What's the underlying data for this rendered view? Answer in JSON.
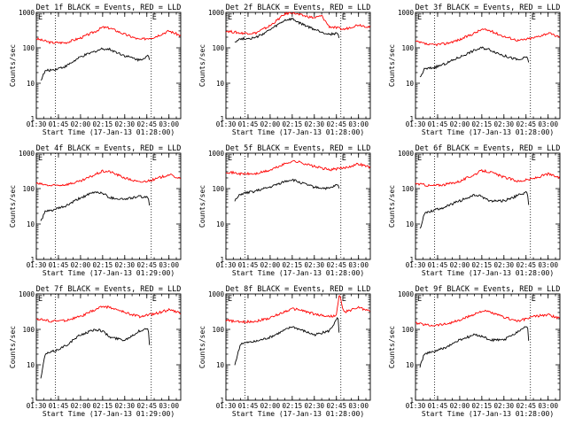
{
  "chart_data": [
    {
      "type": "line",
      "title": "Det 1f BLACK = Events, RED = LLD",
      "xlabel": "Start Time (17-Jan-13 01:28:00)",
      "ylabel": "Counts/sec",
      "y_scale": "log",
      "ylim": [
        1,
        1000
      ],
      "xlim": [
        "01:30",
        "03:08"
      ],
      "x_ticks": [
        "01:30",
        "01:45",
        "02:00",
        "02:15",
        "02:30",
        "02:45",
        "03:00"
      ],
      "y_ticks": [
        "1",
        "10",
        "100",
        "1000"
      ],
      "event_lines": [
        "01:43",
        "02:48"
      ],
      "event_marks": [
        "E",
        "E"
      ],
      "series": [
        {
          "color": "#ff0000",
          "x": [
            "01:30",
            "01:40",
            "01:50",
            "02:00",
            "02:10",
            "02:15",
            "02:20",
            "02:30",
            "02:40",
            "02:50",
            "03:00",
            "03:08"
          ],
          "values": [
            180,
            140,
            140,
            190,
            290,
            380,
            360,
            240,
            170,
            200,
            300,
            220
          ]
        },
        {
          "color": "#000000",
          "x": [
            "01:33",
            "01:36",
            "01:43",
            "01:50",
            "02:00",
            "02:10",
            "02:15",
            "02:20",
            "02:30",
            "02:40",
            "02:46",
            "02:47"
          ],
          "values": [
            12,
            22,
            25,
            30,
            55,
            80,
            95,
            90,
            60,
            45,
            60,
            40
          ]
        }
      ]
    },
    {
      "type": "line",
      "title": "Det 2f BLACK = Events, RED = LLD",
      "xlabel": "Start Time (17-Jan-13 01:28:00)",
      "ylabel": "Counts/sec",
      "y_scale": "log",
      "ylim": [
        1,
        1000
      ],
      "xlim": [
        "01:30",
        "03:08"
      ],
      "x_ticks": [
        "01:30",
        "01:45",
        "02:00",
        "02:15",
        "02:30",
        "02:45",
        "03:00"
      ],
      "y_ticks": [
        "1",
        "10",
        "100",
        "1000"
      ],
      "event_lines": [
        "01:43",
        "02:48"
      ],
      "event_marks": [
        "E",
        "E"
      ],
      "series": [
        {
          "color": "#ff0000",
          "x": [
            "01:30",
            "01:40",
            "01:50",
            "02:00",
            "02:10",
            "02:15",
            "02:20",
            "02:30",
            "02:35",
            "02:40",
            "02:50",
            "03:00",
            "03:08"
          ],
          "values": [
            300,
            260,
            260,
            420,
            900,
            1000,
            850,
            700,
            800,
            400,
            330,
            450,
            380
          ]
        },
        {
          "color": "#000000",
          "x": [
            "01:36",
            "01:40",
            "01:50",
            "02:00",
            "02:10",
            "02:15",
            "02:20",
            "02:30",
            "02:40",
            "02:46",
            "02:47"
          ],
          "values": [
            150,
            180,
            190,
            320,
            600,
            650,
            500,
            330,
            240,
            260,
            160
          ]
        }
      ]
    },
    {
      "type": "line",
      "title": "Det 3f BLACK = Events, RED = LLD",
      "xlabel": "Start Time (17-Jan-13 01:28:00)",
      "ylabel": "Counts/sec",
      "y_scale": "log",
      "ylim": [
        1,
        1000
      ],
      "xlim": [
        "01:30",
        "03:08"
      ],
      "x_ticks": [
        "01:30",
        "01:45",
        "02:00",
        "02:15",
        "02:30",
        "02:45",
        "03:00"
      ],
      "y_ticks": [
        "1",
        "10",
        "100",
        "1000"
      ],
      "event_lines": [
        "01:43",
        "02:48"
      ],
      "event_marks": [
        "E",
        "E"
      ],
      "series": [
        {
          "color": "#ff0000",
          "x": [
            "01:30",
            "01:40",
            "01:50",
            "02:00",
            "02:10",
            "02:15",
            "02:20",
            "02:30",
            "02:40",
            "02:50",
            "03:00",
            "03:08"
          ],
          "values": [
            150,
            120,
            130,
            170,
            260,
            330,
            310,
            210,
            160,
            190,
            260,
            200
          ]
        },
        {
          "color": "#000000",
          "x": [
            "01:33",
            "01:36",
            "01:43",
            "01:50",
            "02:00",
            "02:10",
            "02:15",
            "02:20",
            "02:30",
            "02:40",
            "02:46",
            "02:47"
          ],
          "values": [
            14,
            25,
            28,
            35,
            55,
            85,
            100,
            90,
            60,
            45,
            55,
            35
          ]
        }
      ]
    },
    {
      "type": "line",
      "title": "Det 4f BLACK = Events, RED = LLD",
      "xlabel": "Start Time (17-Jan-13 01:29:00)",
      "ylabel": "Counts/sec",
      "y_scale": "log",
      "ylim": [
        1,
        1000
      ],
      "xlim": [
        "01:30",
        "03:08"
      ],
      "x_ticks": [
        "01:30",
        "01:45",
        "02:00",
        "02:15",
        "02:30",
        "02:45",
        "03:00"
      ],
      "y_ticks": [
        "1",
        "10",
        "100",
        "1000"
      ],
      "event_lines": [
        "01:43",
        "02:48"
      ],
      "event_marks": [
        "E",
        "E"
      ],
      "series": [
        {
          "color": "#ff0000",
          "x": [
            "01:30",
            "01:40",
            "01:50",
            "02:00",
            "02:10",
            "02:15",
            "02:20",
            "02:30",
            "02:40",
            "02:50",
            "03:00",
            "03:08"
          ],
          "values": [
            140,
            120,
            130,
            160,
            250,
            310,
            300,
            200,
            150,
            180,
            250,
            190
          ]
        },
        {
          "color": "#000000",
          "x": [
            "01:33",
            "01:36",
            "01:43",
            "01:50",
            "02:00",
            "02:10",
            "02:15",
            "02:20",
            "02:30",
            "02:40",
            "02:46",
            "02:47"
          ],
          "values": [
            12,
            22,
            26,
            32,
            55,
            80,
            75,
            55,
            50,
            60,
            55,
            30
          ]
        }
      ]
    },
    {
      "type": "line",
      "title": "Det 5f BLACK = Events, RED = LLD",
      "xlabel": "Start Time (17-Jan-13 01:28:00)",
      "ylabel": "Counts/sec",
      "y_scale": "log",
      "ylim": [
        1,
        1000
      ],
      "xlim": [
        "01:30",
        "03:08"
      ],
      "x_ticks": [
        "01:30",
        "01:45",
        "02:00",
        "02:15",
        "02:30",
        "02:45",
        "03:00"
      ],
      "y_ticks": [
        "1",
        "10",
        "100",
        "1000"
      ],
      "event_lines": [
        "01:43",
        "02:48"
      ],
      "event_marks": [
        "E",
        "E"
      ],
      "series": [
        {
          "color": "#ff0000",
          "x": [
            "01:30",
            "01:40",
            "01:50",
            "02:00",
            "02:10",
            "02:15",
            "02:20",
            "02:30",
            "02:40",
            "02:50",
            "03:00",
            "03:08"
          ],
          "values": [
            300,
            260,
            260,
            330,
            500,
            600,
            560,
            420,
            340,
            380,
            500,
            400
          ]
        },
        {
          "color": "#000000",
          "x": [
            "01:36",
            "01:40",
            "01:50",
            "02:00",
            "02:10",
            "02:15",
            "02:20",
            "02:30",
            "02:40",
            "02:46",
            "02:47"
          ],
          "values": [
            45,
            70,
            85,
            110,
            160,
            180,
            150,
            110,
            100,
            130,
            90
          ]
        }
      ]
    },
    {
      "type": "line",
      "title": "Det 6f BLACK = Events, RED = LLD",
      "xlabel": "Start Time (17-Jan-13 01:28:00)",
      "ylabel": "Counts/sec",
      "y_scale": "log",
      "ylim": [
        1,
        1000
      ],
      "xlim": [
        "01:30",
        "03:08"
      ],
      "x_ticks": [
        "01:30",
        "01:45",
        "02:00",
        "02:15",
        "02:30",
        "02:45",
        "03:00"
      ],
      "y_ticks": [
        "1",
        "10",
        "100",
        "1000"
      ],
      "event_lines": [
        "01:43",
        "02:48"
      ],
      "event_marks": [
        "E",
        "E"
      ],
      "series": [
        {
          "color": "#ff0000",
          "x": [
            "01:30",
            "01:40",
            "01:50",
            "02:00",
            "02:10",
            "02:15",
            "02:20",
            "02:30",
            "02:40",
            "02:50",
            "03:00",
            "03:08"
          ],
          "values": [
            140,
            120,
            130,
            160,
            250,
            320,
            300,
            210,
            160,
            190,
            260,
            200
          ]
        },
        {
          "color": "#000000",
          "x": [
            "01:33",
            "01:36",
            "01:43",
            "01:50",
            "02:00",
            "02:10",
            "02:15",
            "02:20",
            "02:30",
            "02:40",
            "02:46",
            "02:47"
          ],
          "values": [
            7,
            20,
            25,
            30,
            45,
            65,
            60,
            45,
            45,
            65,
            80,
            30
          ]
        }
      ]
    },
    {
      "type": "line",
      "title": "Det 7f BLACK = Events, RED = LLD",
      "xlabel": "Start Time (17-Jan-13 01:29:00)",
      "ylabel": "Counts/sec",
      "y_scale": "log",
      "ylim": [
        1,
        1000
      ],
      "xlim": [
        "01:30",
        "03:08"
      ],
      "x_ticks": [
        "01:30",
        "01:45",
        "02:00",
        "02:15",
        "02:30",
        "02:45",
        "03:00"
      ],
      "y_ticks": [
        "1",
        "10",
        "100",
        "1000"
      ],
      "event_lines": [
        "01:43",
        "02:48"
      ],
      "event_marks": [
        "E",
        "E"
      ],
      "series": [
        {
          "color": "#ff0000",
          "x": [
            "01:30",
            "01:40",
            "01:50",
            "02:00",
            "02:10",
            "02:15",
            "02:20",
            "02:30",
            "02:40",
            "02:50",
            "03:00",
            "03:08"
          ],
          "values": [
            200,
            170,
            180,
            230,
            360,
            450,
            420,
            300,
            230,
            270,
            360,
            280
          ]
        },
        {
          "color": "#000000",
          "x": [
            "01:33",
            "01:36",
            "01:43",
            "01:50",
            "02:00",
            "02:10",
            "02:15",
            "02:20",
            "02:30",
            "02:40",
            "02:46",
            "02:47"
          ],
          "values": [
            4,
            20,
            25,
            35,
            70,
            100,
            90,
            60,
            50,
            90,
            110,
            30
          ]
        }
      ]
    },
    {
      "type": "line",
      "title": "Det 8f BLACK = Events, RED = LLD",
      "xlabel": "Start Time (17-Jan-13 01:28:00)",
      "ylabel": "Counts/sec",
      "y_scale": "log",
      "ylim": [
        1,
        1000
      ],
      "xlim": [
        "01:30",
        "03:08"
      ],
      "x_ticks": [
        "01:30",
        "01:45",
        "02:00",
        "02:15",
        "02:30",
        "02:45",
        "03:00"
      ],
      "y_ticks": [
        "1",
        "10",
        "100",
        "1000"
      ],
      "event_lines": [
        "01:43",
        "02:48"
      ],
      "event_marks": [
        "E",
        "E"
      ],
      "series": [
        {
          "color": "#ff0000",
          "x": [
            "01:30",
            "01:40",
            "01:50",
            "02:00",
            "02:10",
            "02:15",
            "02:20",
            "02:30",
            "02:40",
            "02:45",
            "02:47",
            "02:50",
            "03:00",
            "03:08"
          ],
          "values": [
            180,
            160,
            170,
            210,
            320,
            380,
            360,
            270,
            230,
            250,
            1000,
            300,
            420,
            320
          ]
        },
        {
          "color": "#000000",
          "x": [
            "01:36",
            "01:40",
            "01:50",
            "02:00",
            "02:10",
            "02:15",
            "02:20",
            "02:30",
            "02:40",
            "02:45",
            "02:46",
            "02:47"
          ],
          "values": [
            10,
            40,
            45,
            60,
            95,
            120,
            100,
            70,
            90,
            180,
            240,
            60
          ]
        }
      ]
    },
    {
      "type": "line",
      "title": "Det 9f BLACK = Events, RED = LLD",
      "xlabel": "Start Time (17-Jan-13 01:28:00)",
      "ylabel": "Counts/sec",
      "y_scale": "log",
      "ylim": [
        1,
        1000
      ],
      "xlim": [
        "01:30",
        "03:08"
      ],
      "x_ticks": [
        "01:30",
        "01:45",
        "02:00",
        "02:15",
        "02:30",
        "02:45",
        "03:00"
      ],
      "y_ticks": [
        "1",
        "10",
        "100",
        "1000"
      ],
      "event_lines": [
        "01:43",
        "02:48"
      ],
      "event_marks": [
        "E",
        "E"
      ],
      "series": [
        {
          "color": "#ff0000",
          "x": [
            "01:30",
            "01:40",
            "01:50",
            "02:00",
            "02:10",
            "02:15",
            "02:20",
            "02:30",
            "02:40",
            "02:50",
            "03:00",
            "03:08"
          ],
          "values": [
            150,
            130,
            140,
            180,
            270,
            330,
            310,
            220,
            170,
            230,
            260,
            200
          ]
        },
        {
          "color": "#000000",
          "x": [
            "01:33",
            "01:36",
            "01:43",
            "01:50",
            "02:00",
            "02:10",
            "02:15",
            "02:20",
            "02:30",
            "02:40",
            "02:46",
            "02:47"
          ],
          "values": [
            9,
            20,
            24,
            30,
            50,
            70,
            65,
            50,
            50,
            90,
            130,
            35
          ]
        }
      ]
    }
  ]
}
